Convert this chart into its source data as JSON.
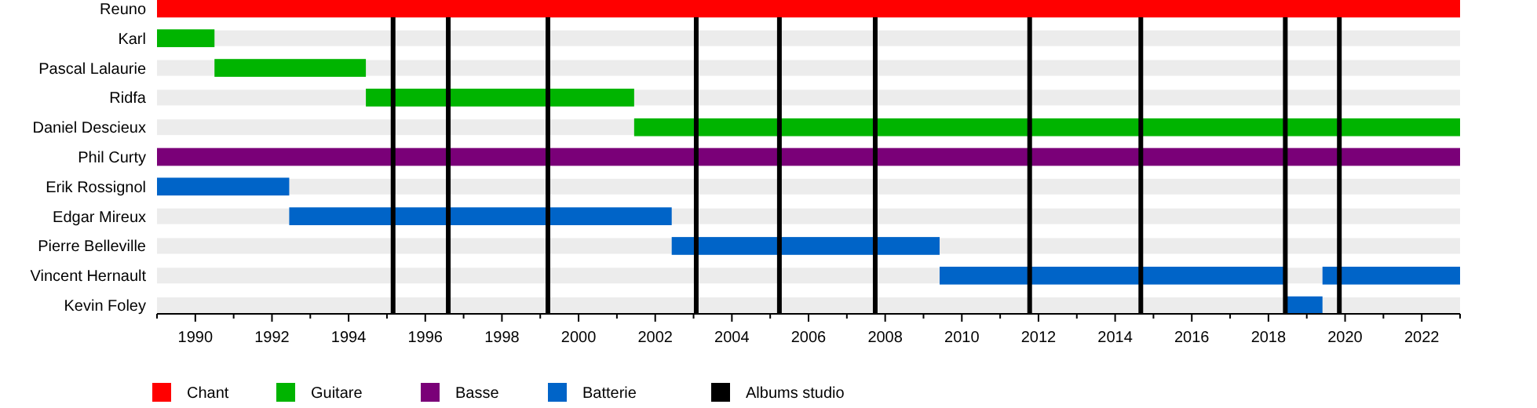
{
  "chart_data": {
    "type": "bar",
    "orientation": "horizontal",
    "legend": "bottom",
    "categories": [
      "Reuno",
      "Karl",
      "Pascal Lalaurie",
      "Ridfa",
      "Daniel Descieux",
      "Phil Curty",
      "Erik Rossignol",
      "Edgar Mireux",
      "Pierre Belleville",
      "Vincent Hernault",
      "Kevin Foley"
    ],
    "xlim": [
      1989,
      2023
    ],
    "xticks": [
      {
        "value": 1989,
        "label": null
      },
      1990,
      {
        "value": 1991,
        "label": null
      },
      1992,
      {
        "value": 1993,
        "label": null
      },
      1994,
      {
        "value": 1995,
        "label": null
      },
      1996,
      {
        "value": 1997,
        "label": null
      },
      1998,
      {
        "value": 1999,
        "label": null
      },
      2000,
      {
        "value": 2001,
        "label": null
      },
      2002,
      {
        "value": 2003,
        "label": null
      },
      2004,
      {
        "value": 2005,
        "label": null
      },
      2006,
      {
        "value": 2007,
        "label": null
      },
      2008,
      {
        "value": 2009,
        "label": null
      },
      2010,
      {
        "value": 2011,
        "label": null
      },
      2012,
      {
        "value": 2013,
        "label": null
      },
      2014,
      {
        "value": 2015,
        "label": null
      },
      2016,
      {
        "value": 2017,
        "label": null
      },
      2018,
      {
        "value": 2019,
        "label": null
      },
      2020,
      {
        "value": 2021,
        "label": null
      },
      2022,
      {
        "value": 2023,
        "label": null
      }
    ],
    "series": [
      {
        "name": "Chant",
        "color": "#ff0000",
        "base": [
          1989,
          null,
          null,
          null,
          null,
          null,
          null,
          null,
          null,
          null,
          null
        ],
        "values": [
          34,
          null,
          null,
          null,
          null,
          null,
          null,
          null,
          null,
          null,
          null
        ]
      },
      {
        "name": "Guitare",
        "color": "#00b400",
        "base": [
          null,
          1989,
          1990.5,
          1994.45,
          2001.45,
          null,
          null,
          null,
          null,
          null,
          null
        ],
        "values": [
          null,
          1.5,
          3.95,
          7.0,
          21.55,
          null,
          null,
          null,
          null,
          null,
          null
        ]
      },
      {
        "name": "Basse",
        "color": "#7a0078",
        "base": [
          null,
          null,
          null,
          null,
          null,
          1989,
          null,
          null,
          null,
          null,
          null
        ],
        "values": [
          null,
          null,
          null,
          null,
          null,
          34,
          null,
          null,
          null,
          null,
          null
        ]
      },
      {
        "name": "Batterie",
        "color": "#0064c8",
        "base": [
          null,
          null,
          null,
          null,
          null,
          null,
          1989,
          1992.45,
          2002.43,
          2009.42,
          2018.44
        ],
        "values": [
          null,
          null,
          null,
          null,
          null,
          null,
          3.45,
          9.98,
          6.99,
          9.02,
          0.97
        ]
      },
      {
        "color": "#0064c8",
        "base": [
          null,
          null,
          null,
          null,
          null,
          null,
          null,
          null,
          null,
          2019.41,
          null
        ],
        "values": [
          null,
          null,
          null,
          null,
          null,
          null,
          null,
          null,
          null,
          3.59,
          null
        ]
      }
    ],
    "ref_lines": [
      {
        "axis": "x",
        "value": 1995.16,
        "color": "#000000",
        "label": "Albums studio"
      },
      {
        "axis": "x",
        "value": 1996.6,
        "color": "#000000"
      },
      {
        "axis": "x",
        "value": 1999.2,
        "color": "#000000"
      },
      {
        "axis": "x",
        "value": 2003.07,
        "color": "#000000"
      },
      {
        "axis": "x",
        "value": 2005.24,
        "color": "#000000"
      },
      {
        "axis": "x",
        "value": 2007.74,
        "color": "#000000"
      },
      {
        "axis": "x",
        "value": 2011.77,
        "color": "#000000"
      },
      {
        "axis": "x",
        "value": 2014.67,
        "color": "#000000"
      },
      {
        "axis": "x",
        "value": 2018.44,
        "color": "#000000"
      },
      {
        "axis": "x",
        "value": 2019.85,
        "color": "#000000"
      }
    ]
  }
}
